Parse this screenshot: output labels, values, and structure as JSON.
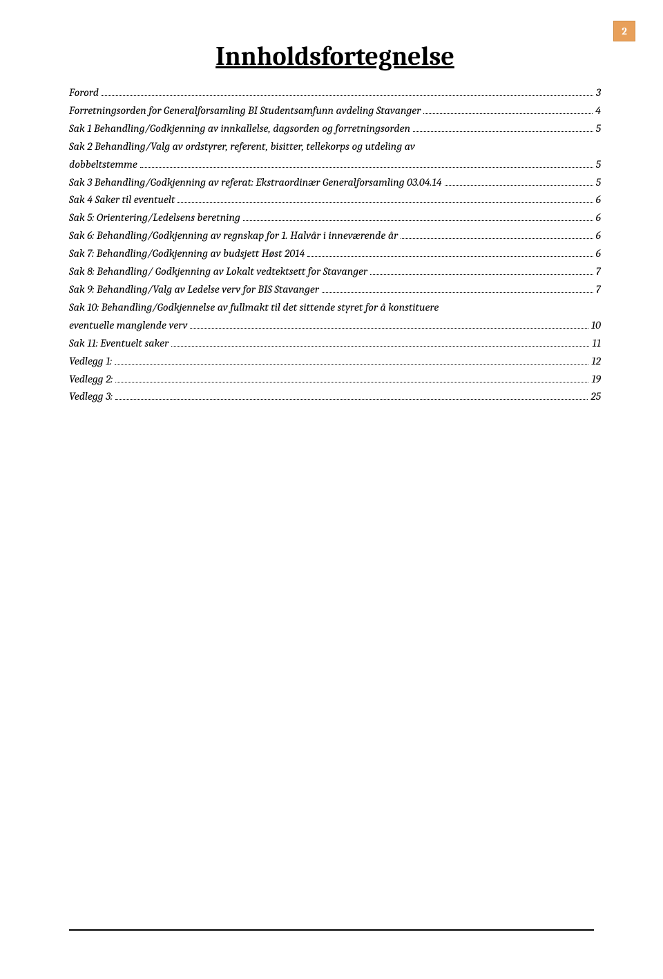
{
  "page_number": "2",
  "title": "Innholdsfortegnelse",
  "toc_entries": [
    {
      "label": "Forord",
      "page": "3"
    },
    {
      "label": "Forretningsorden for Generalforsamling BI Studentsamfunn avdeling Stavanger",
      "page": "4"
    },
    {
      "label": "Sak 1 Behandling/Godkjenning av innkallelse, dagsorden og forretningsorden",
      "page": "5"
    },
    {
      "label": "Sak 2 Behandling/Valg av ordstyrer, referent, bisitter, tellekorps og utdeling av dobbeltstemme",
      "page": "5"
    },
    {
      "label": "Sak 3 Behandling/Godkjenning av referat: Ekstraordinær Generalforsamling 03.04.14",
      "page": "5"
    },
    {
      "label": "Sak 4 Saker til eventuelt",
      "page": "6"
    },
    {
      "label": "Sak 5: Orientering/Ledelsens beretning",
      "page": "6"
    },
    {
      "label": "Sak 6: Behandling/Godkjenning av regnskap for 1. Halvår i inneværende år",
      "page": "6"
    },
    {
      "label": "Sak 7: Behandling/Godkjenning av budsjett Høst 2014",
      "page": "6"
    },
    {
      "label": "Sak 8: Behandling/ Godkjenning av Lokalt vedtektsett for Stavanger",
      "page": "7"
    },
    {
      "label": "Sak 9: Behandling/Valg av Ledelse verv for BIS Stavanger",
      "page": "7"
    },
    {
      "label": "Sak 10: Behandling/Godkjennelse av fullmakt til det sittende styret for å konstituere eventuelle manglende verv",
      "page": "10"
    },
    {
      "label": "Sak 11: Eventuelt saker",
      "page": "11"
    },
    {
      "label": "Vedlegg 1:",
      "page": "12"
    },
    {
      "label": "Vedlegg 2:",
      "page": "19"
    },
    {
      "label": "Vedlegg 3:",
      "page": "25"
    }
  ],
  "wrap_entries": {
    "3": {
      "line1": "Sak 2 Behandling/Valg av ordstyrer, referent, bisitter, tellekorps og utdeling av",
      "line2": "dobbeltstemme"
    },
    "11": {
      "line1": "Sak 10: Behandling/Godkjennelse av fullmakt til det sittende styret for å konstituere",
      "line2": "eventuelle manglende verv"
    }
  },
  "colors": {
    "page_box_bg": "#e8a05a",
    "page_box_border": "#d08a40",
    "text": "#000000",
    "background": "#ffffff"
  },
  "typography": {
    "title_fontsize": 38,
    "toc_fontsize": 16,
    "font_family": "Cambria, Georgia, serif",
    "toc_style": "italic"
  }
}
